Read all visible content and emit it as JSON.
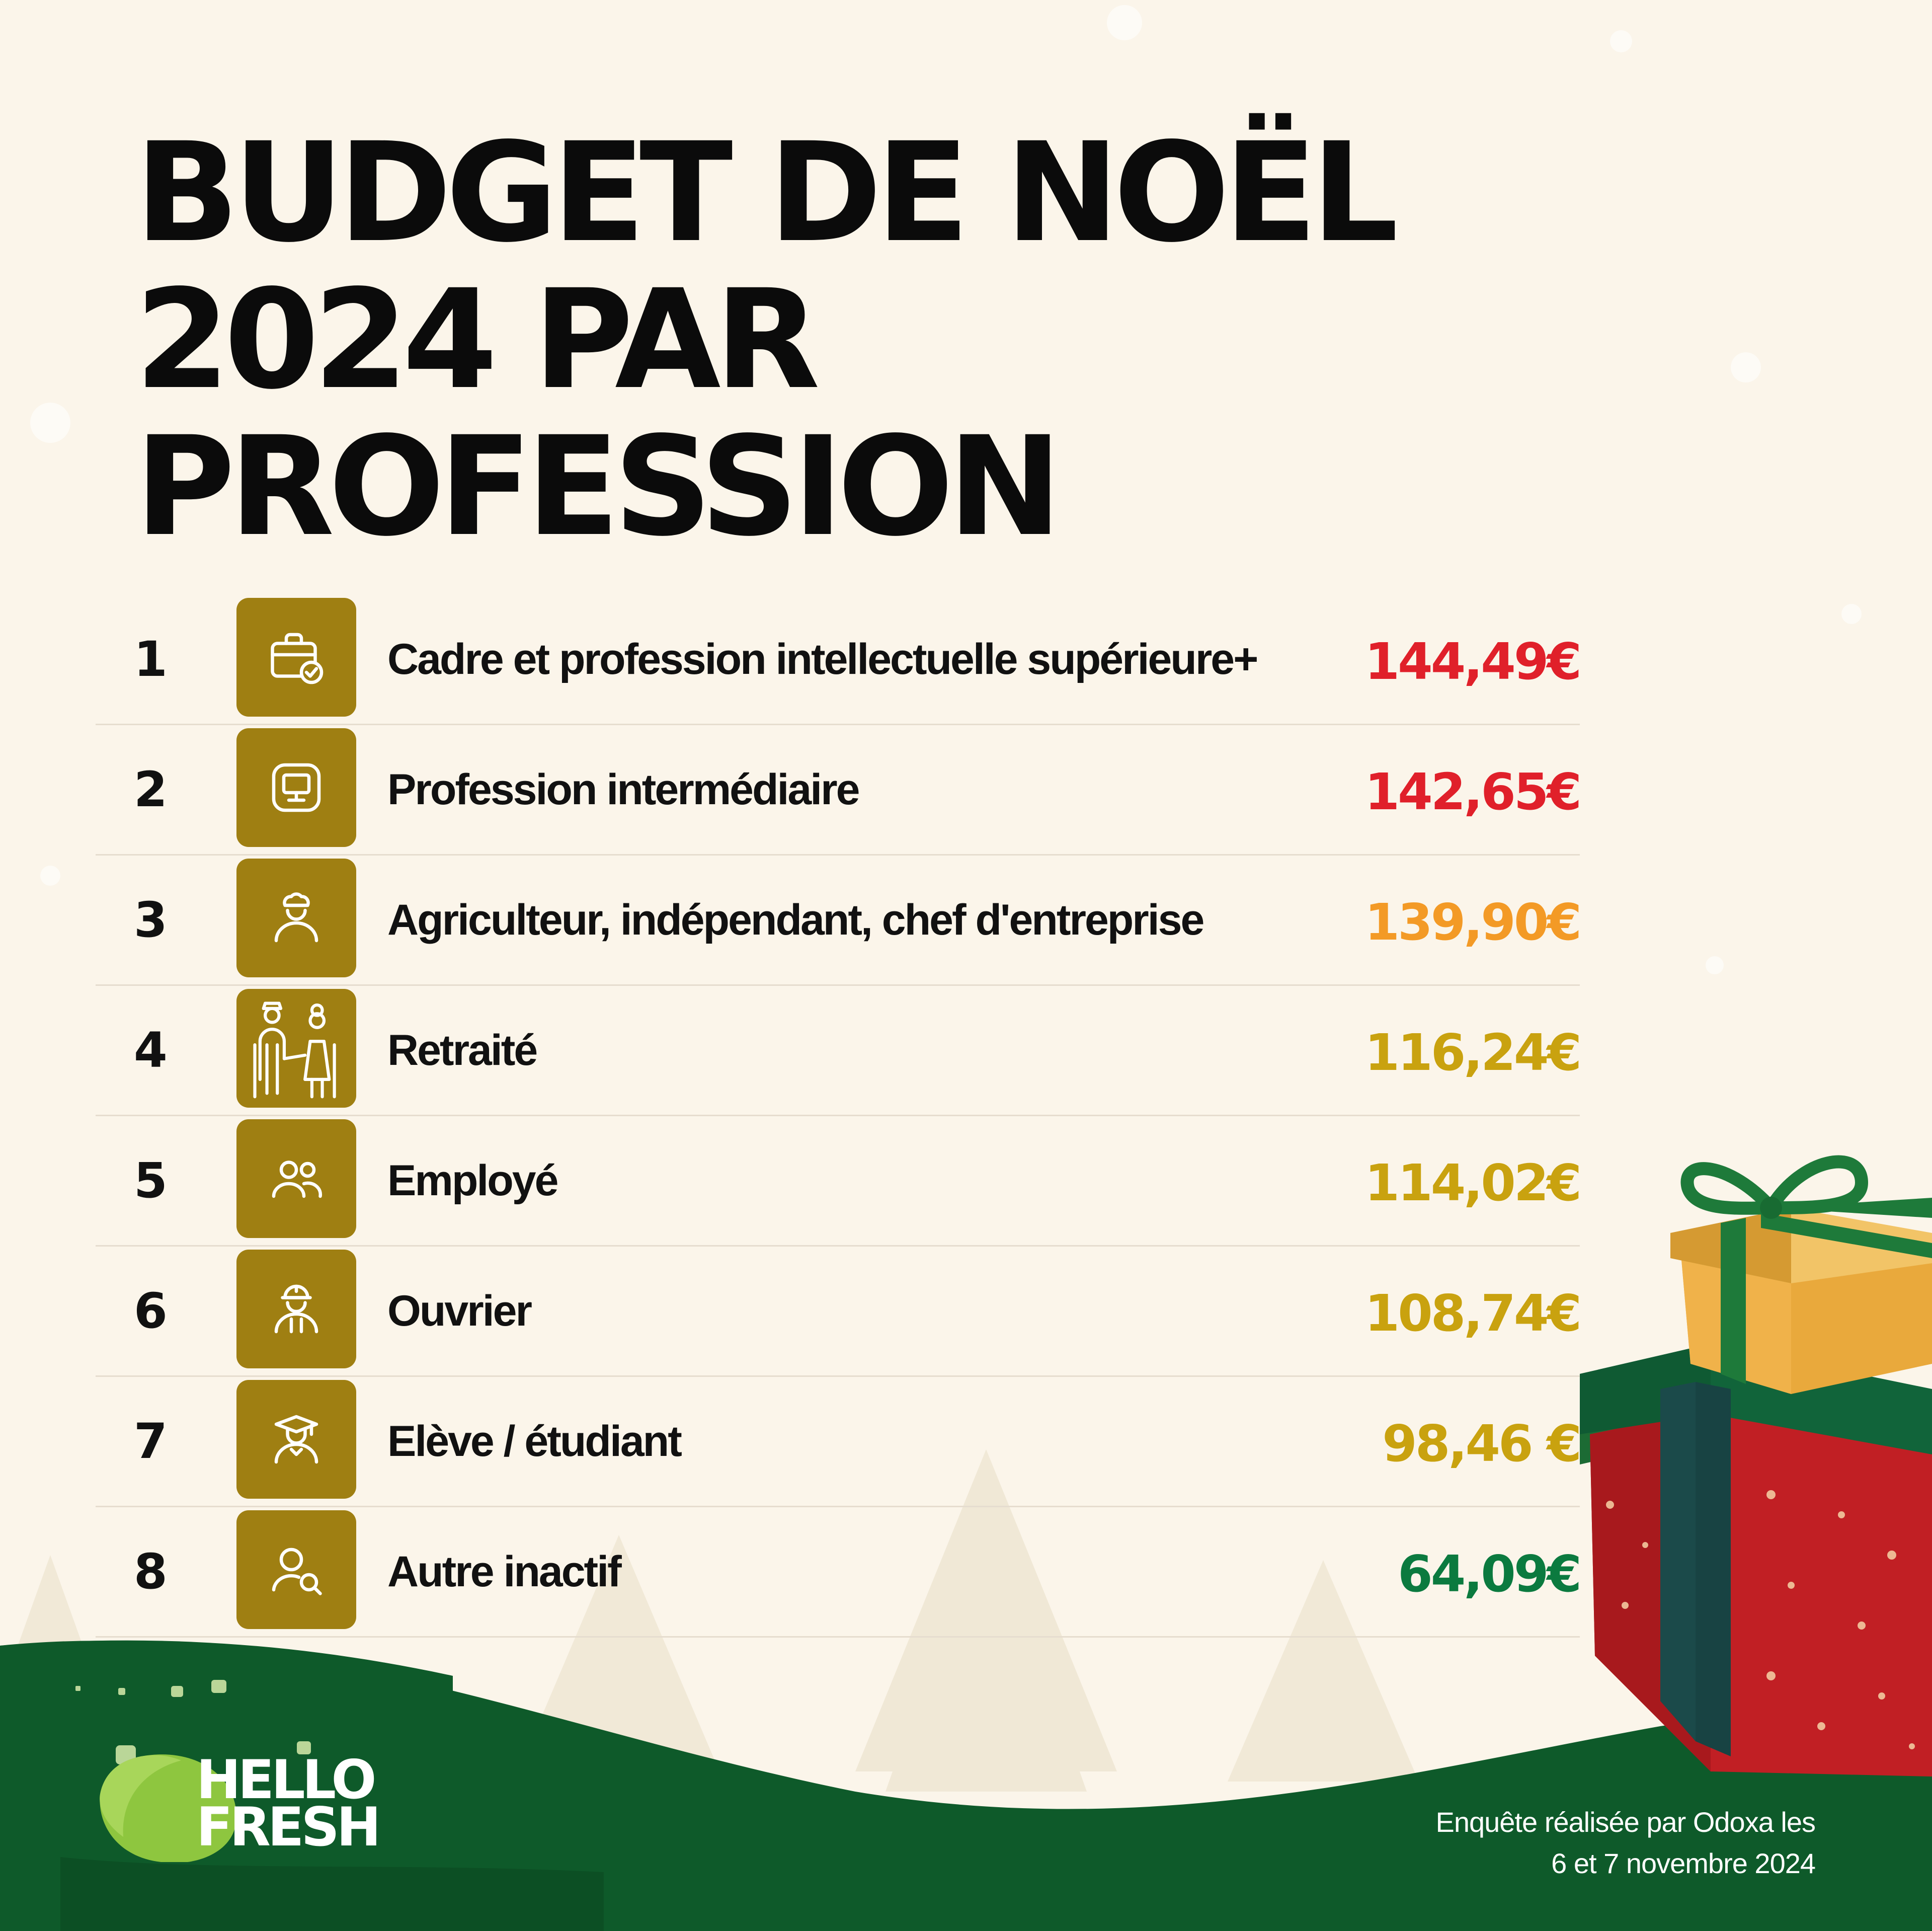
{
  "title_lines": [
    "BUDGET DE NOËL",
    "2024 PAR",
    "PROFESSION"
  ],
  "colors": {
    "background": "#fbf5ea",
    "dark_green": "#0e5a2a",
    "icon_box": "#9f7f12",
    "red": "#e0202a",
    "orange": "#f39a26",
    "gold": "#c9a20f",
    "green": "#0b7a3f"
  },
  "rows": [
    {
      "rank": "1",
      "icon": "briefcase-check-icon",
      "label": "Cadre et profession intellectuelle supérieure+",
      "value": "144,49€",
      "color": "#e0202a"
    },
    {
      "rank": "2",
      "icon": "monitor-icon",
      "label": "Profession intermédiaire",
      "value": "142,65€",
      "color": "#e0202a"
    },
    {
      "rank": "3",
      "icon": "chef-person-icon",
      "label": "Agriculteur, indépendant, chef d'entreprise",
      "value": "139,90€",
      "color": "#f39a26"
    },
    {
      "rank": "4",
      "icon": "elderly-couple-icon",
      "label": "Retraité",
      "value": "116,24€",
      "color": "#c9a20f"
    },
    {
      "rank": "5",
      "icon": "people-icon",
      "label": "Employé",
      "value": "114,02€",
      "color": "#c9a20f"
    },
    {
      "rank": "6",
      "icon": "worker-helmet-icon",
      "label": "Ouvrier",
      "value": "108,74€",
      "color": "#c9a20f"
    },
    {
      "rank": "7",
      "icon": "graduate-student-icon",
      "label": "Elève / étudiant",
      "value": "98,46 €",
      "color": "#c9a20f"
    },
    {
      "rank": "8",
      "icon": "person-search-icon",
      "label": "Autre inactif",
      "value": "64,09€",
      "color": "#0b7a3f"
    }
  ],
  "brand": {
    "line1": "HELLO",
    "line2": "FRESH",
    "icon": "lime-icon"
  },
  "source": {
    "line1": "Enquête réalisée par Odoxa les",
    "line2": "6 et 7 novembre 2024"
  },
  "decoration": {
    "icon": "gift-boxes-icon"
  }
}
